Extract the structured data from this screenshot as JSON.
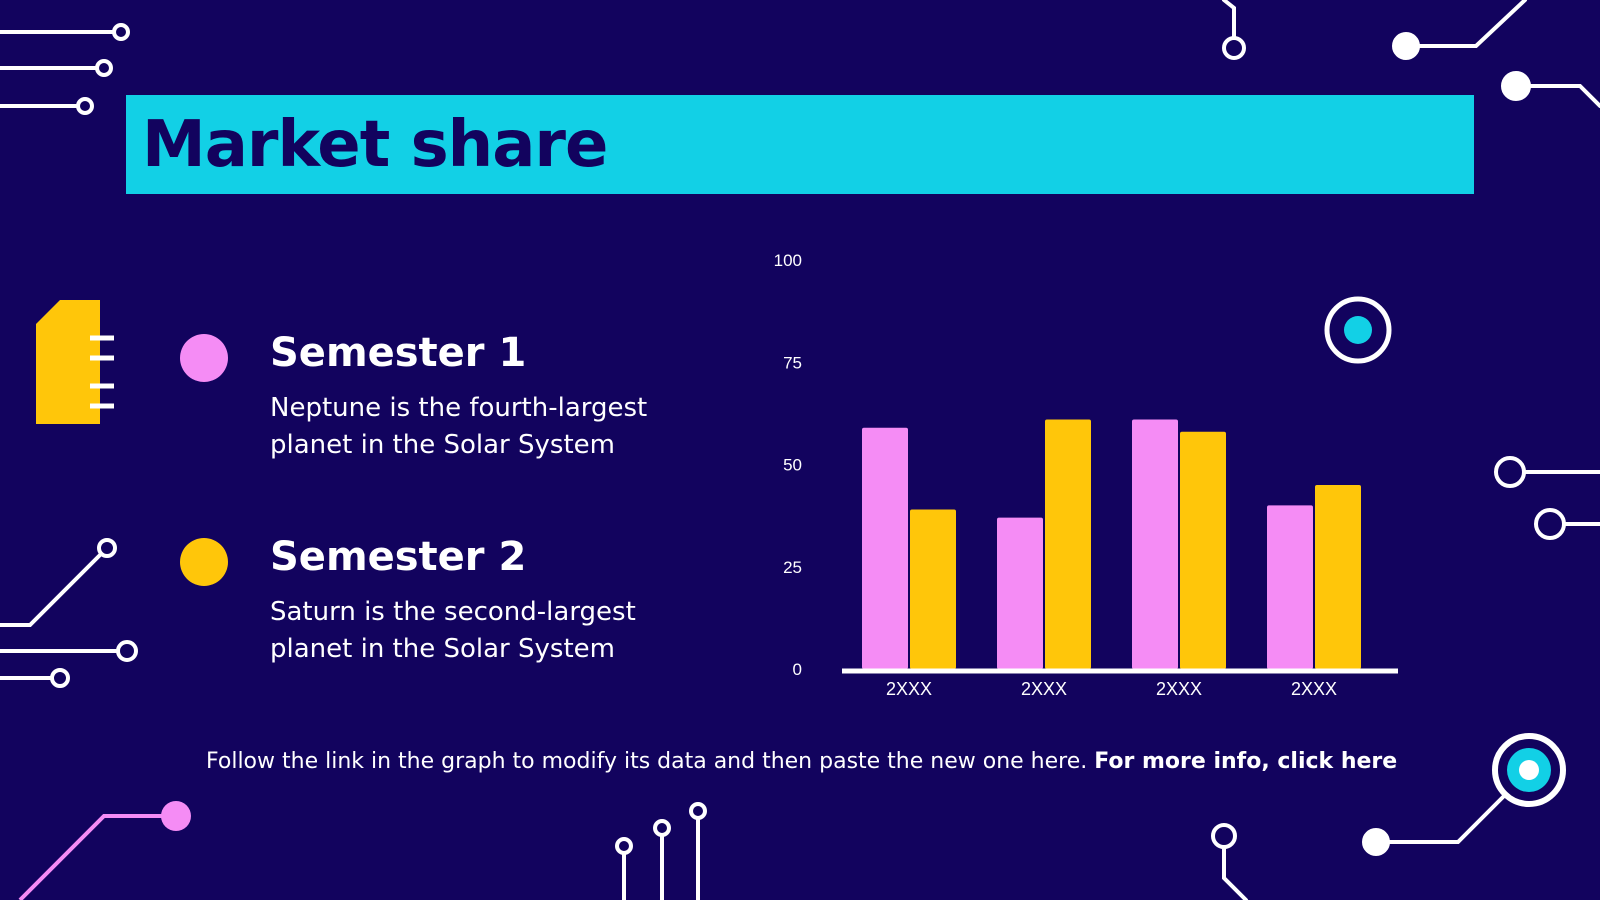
{
  "slide": {
    "title": "Market share",
    "colors": {
      "background": "#12035e",
      "title_bar": "#12d0e6",
      "semester_1": "#f58cf5",
      "semester_2": "#ffc60a",
      "text": "#ffffff"
    }
  },
  "legend": [
    {
      "title": "Semester 1",
      "description": "Neptune is the fourth-largest planet in the Solar System",
      "color": "#f58cf5"
    },
    {
      "title": "Semester 2",
      "description": "Saturn is the second-largest planet in the Solar System",
      "color": "#ffc60a"
    }
  ],
  "footer": {
    "text": "Follow the link in the graph to modify its data and then paste the new one here. ",
    "link": "For more info, click here"
  },
  "decorations": {
    "icons": [
      "circuit-lines",
      "sd-card-icon",
      "target-node-icon"
    ]
  },
  "chart_data": {
    "type": "bar",
    "categories": [
      "2XXX",
      "2XXX",
      "2XXX",
      "2XXX"
    ],
    "series": [
      {
        "values": [
          59,
          37,
          61,
          40
        ],
        "color": "#f58cf5"
      },
      {
        "values": [
          39,
          61,
          58,
          45
        ],
        "color": "#ffc60a"
      }
    ],
    "ylim": [
      0,
      100
    ],
    "yticks": [
      0,
      25,
      50,
      75,
      100
    ],
    "grid": false,
    "legend": "none"
  }
}
